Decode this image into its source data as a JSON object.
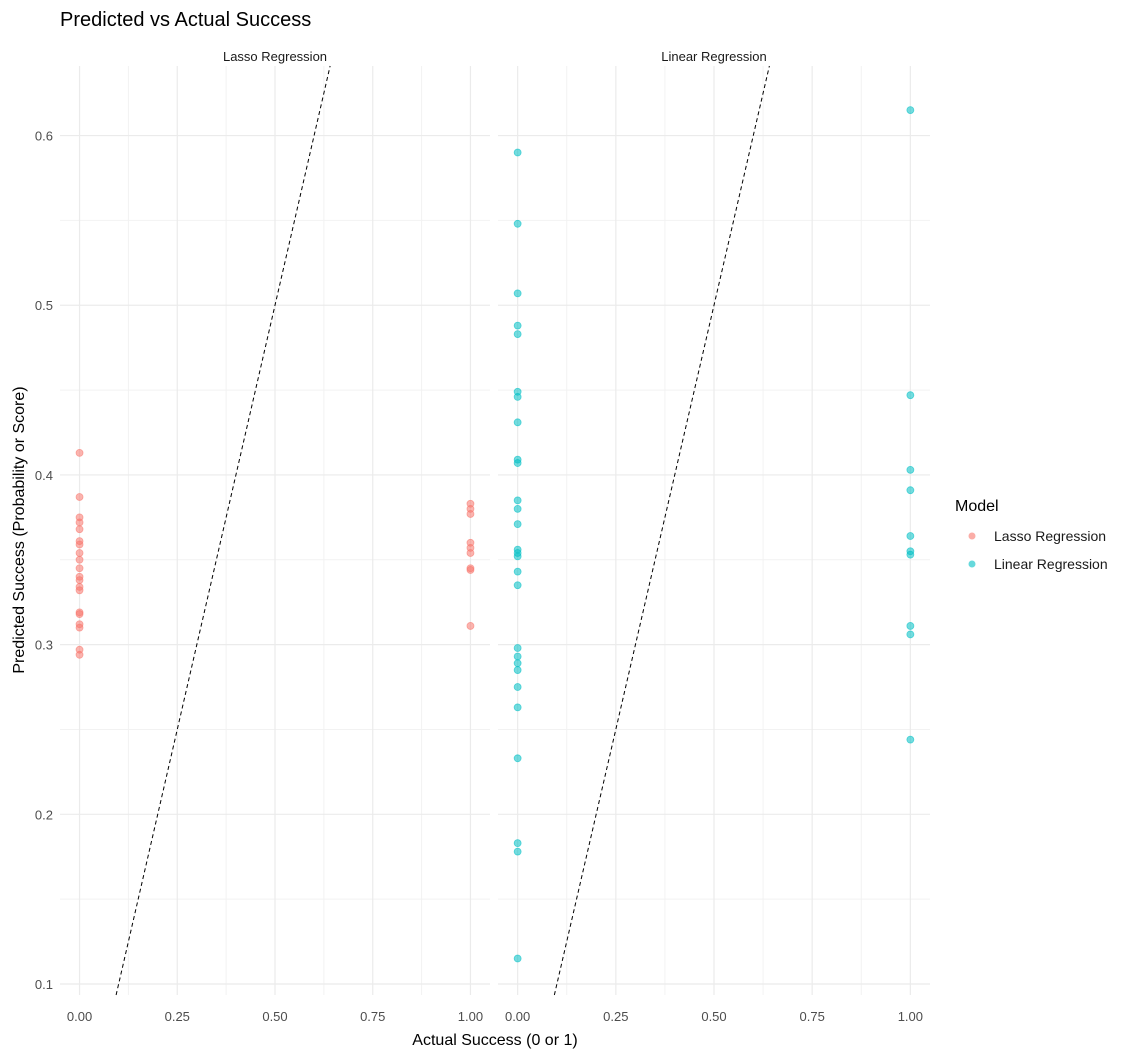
{
  "chart_data": {
    "type": "scatter",
    "title": "Predicted vs Actual Success",
    "xlabel": "Actual Success (0 or 1)",
    "ylabel": "Predicted Success (Probability or Score)",
    "xlim": [
      -0.05,
      1.05
    ],
    "ylim": [
      0.0935,
      0.641
    ],
    "x_ticks": [
      "0.00",
      "0.25",
      "0.50",
      "0.75",
      "1.00"
    ],
    "y_ticks": [
      "0.1",
      "0.2",
      "0.3",
      "0.4",
      "0.5",
      "0.6"
    ],
    "grid": true,
    "reference_line": {
      "type": "dashed",
      "slope": 1,
      "intercept": 0,
      "color": "#000000"
    },
    "legend": {
      "title": "Model",
      "placement": "right"
    },
    "facets": [
      {
        "label": "Lasso Regression",
        "series": "Lasso Regression",
        "color": "#F8766D",
        "points": {
          "x0": [
            0.413,
            0.387,
            0.375,
            0.372,
            0.368,
            0.361,
            0.359,
            0.354,
            0.35,
            0.345,
            0.34,
            0.338,
            0.334,
            0.332,
            0.319,
            0.318,
            0.312,
            0.31,
            0.297,
            0.294
          ],
          "x1": [
            0.383,
            0.38,
            0.377,
            0.36,
            0.357,
            0.354,
            0.345,
            0.344,
            0.311
          ]
        }
      },
      {
        "label": "Linear Regression",
        "series": "Linear Regression",
        "color": "#00BFC4",
        "points": {
          "x0": [
            0.59,
            0.548,
            0.507,
            0.488,
            0.483,
            0.449,
            0.446,
            0.431,
            0.409,
            0.407,
            0.385,
            0.38,
            0.371,
            0.356,
            0.354,
            0.352,
            0.343,
            0.335,
            0.298,
            0.293,
            0.289,
            0.285,
            0.275,
            0.263,
            0.233,
            0.183,
            0.178,
            0.115
          ],
          "x1": [
            0.615,
            0.447,
            0.403,
            0.391,
            0.364,
            0.355,
            0.353,
            0.311,
            0.306,
            0.244
          ]
        }
      }
    ]
  }
}
